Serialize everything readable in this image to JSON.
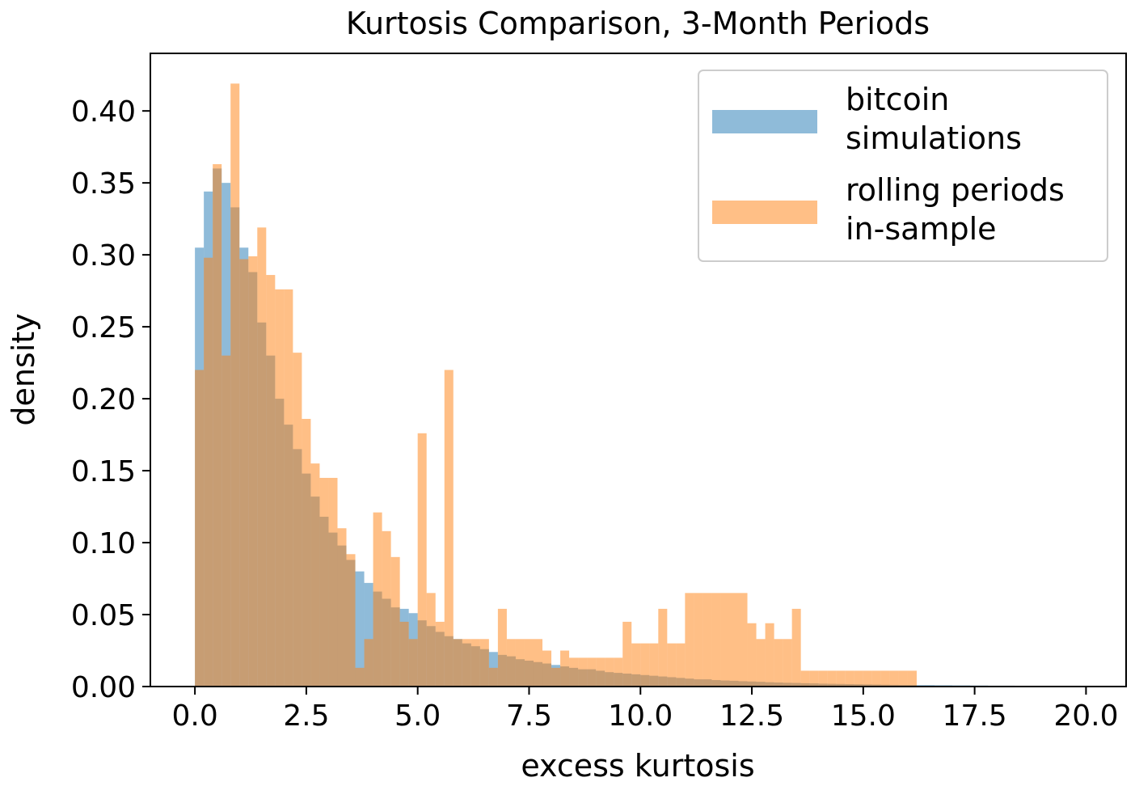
{
  "chart_data": {
    "type": "histogram",
    "title": "Kurtosis Comparison, 3-Month Periods",
    "xlabel": "excess kurtosis",
    "ylabel": "density",
    "xlim": [
      -1.0,
      20.9
    ],
    "ylim": [
      0.0,
      0.44
    ],
    "xticks": [
      0.0,
      2.5,
      5.0,
      7.5,
      10.0,
      12.5,
      15.0,
      17.5,
      20.0
    ],
    "xtick_labels": [
      "0.0",
      "2.5",
      "5.0",
      "7.5",
      "10.0",
      "12.5",
      "15.0",
      "17.5",
      "20.0"
    ],
    "yticks": [
      0.0,
      0.05,
      0.1,
      0.15,
      0.2,
      0.25,
      0.3,
      0.35,
      0.4
    ],
    "ytick_labels": [
      "0.00",
      "0.05",
      "0.10",
      "0.15",
      "0.20",
      "0.25",
      "0.30",
      "0.35",
      "0.40"
    ],
    "grid": false,
    "legend_position": "top-right",
    "series": [
      {
        "name": "bitcoin\nsimulations",
        "color": "#1f77b4",
        "opacity": 0.5,
        "bin_start": 0.0,
        "bin_width": 0.2,
        "values": [
          0.305,
          0.344,
          0.36,
          0.35,
          0.333,
          0.305,
          0.288,
          0.253,
          0.23,
          0.2,
          0.182,
          0.165,
          0.148,
          0.132,
          0.118,
          0.107,
          0.098,
          0.088,
          0.08,
          0.072,
          0.066,
          0.061,
          0.055,
          0.054,
          0.051,
          0.046,
          0.042,
          0.038,
          0.035,
          0.033,
          0.03,
          0.028,
          0.026,
          0.024,
          0.022,
          0.021,
          0.019,
          0.018,
          0.017,
          0.016,
          0.015,
          0.014,
          0.013,
          0.012,
          0.012,
          0.011,
          0.01,
          0.0095,
          0.009,
          0.0085,
          0.008,
          0.0075,
          0.007,
          0.0065,
          0.006,
          0.0055,
          0.005,
          0.005,
          0.0045,
          0.0042,
          0.004,
          0.0037,
          0.0035,
          0.0033,
          0.003,
          0.0028,
          0.0026,
          0.0025,
          0.0023,
          0.0022,
          0.002,
          0.0019,
          0.0018,
          0.0017,
          0.0016,
          0.0015,
          0.0014,
          0.0013,
          0.0012,
          0.0011,
          0.0011,
          0.001,
          0.001,
          0.0009,
          0.0009,
          0.0008,
          0.0008,
          0.0007,
          0.0007,
          0.0006,
          0.0006,
          0.0006,
          0.0005,
          0.0005,
          0.0005,
          0.0004,
          0.0004,
          0.0004,
          0.0004,
          0.0003
        ]
      },
      {
        "name": "rolling periods\nin-sample",
        "color": "#ff7f0e",
        "opacity": 0.5,
        "bin_start": 0.0,
        "bin_width": 0.2,
        "values": [
          0.22,
          0.298,
          0.363,
          0.23,
          0.419,
          0.297,
          0.299,
          0.319,
          0.286,
          0.276,
          0.276,
          0.232,
          0.186,
          0.155,
          0.145,
          0.145,
          0.11,
          0.092,
          0.013,
          0.033,
          0.121,
          0.108,
          0.09,
          0.045,
          0.033,
          0.176,
          0.065,
          0.045,
          0.22,
          0.033,
          0.033,
          0.033,
          0.033,
          0.013,
          0.054,
          0.033,
          0.033,
          0.033,
          0.033,
          0.025,
          0.013,
          0.025,
          0.02,
          0.02,
          0.02,
          0.02,
          0.02,
          0.02,
          0.045,
          0.03,
          0.03,
          0.03,
          0.054,
          0.03,
          0.03,
          0.065,
          0.065,
          0.065,
          0.065,
          0.065,
          0.065,
          0.065,
          0.044,
          0.033,
          0.044,
          0.033,
          0.033,
          0.054,
          0.011,
          0.011,
          0.011,
          0.011,
          0.011,
          0.011,
          0.011,
          0.011,
          0.011,
          0.011,
          0.011,
          0.011,
          0.011
        ]
      }
    ]
  }
}
